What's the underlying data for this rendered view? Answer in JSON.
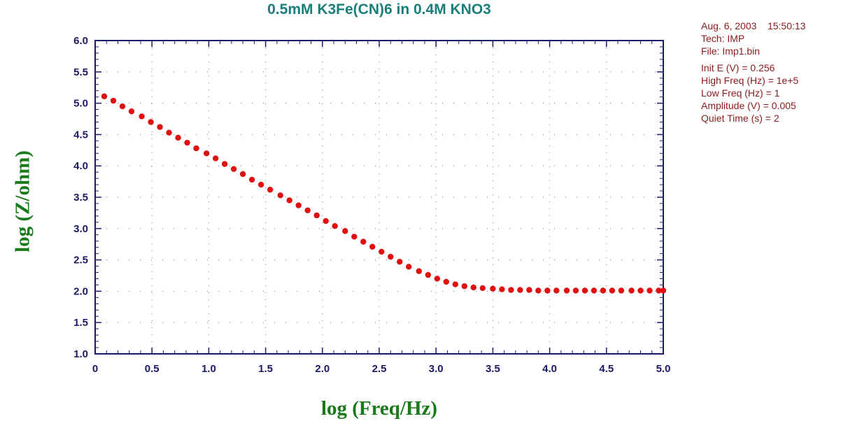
{
  "chart_data": {
    "type": "scatter",
    "title": "0.5mM K3Fe(CN)6 in 0.4M KNO3",
    "xlabel": "log (Freq/Hz)",
    "ylabel": "log (Z/ohm)",
    "xlim": [
      0,
      5
    ],
    "ylim": [
      1,
      6
    ],
    "xticks": [
      "0",
      "0.5",
      "1.0",
      "1.5",
      "2.0",
      "2.5",
      "3.0",
      "3.5",
      "4.0",
      "4.5",
      "5.0"
    ],
    "yticks": [
      "1.0",
      "1.5",
      "2.0",
      "2.5",
      "3.0",
      "3.5",
      "4.0",
      "4.5",
      "5.0",
      "5.5",
      "6.0"
    ],
    "grid": true,
    "series": [
      {
        "name": "log Z",
        "color": "#e01010",
        "x": [
          0.08,
          0.16,
          0.24,
          0.32,
          0.41,
          0.49,
          0.57,
          0.65,
          0.73,
          0.81,
          0.89,
          0.98,
          1.06,
          1.14,
          1.22,
          1.3,
          1.38,
          1.46,
          1.54,
          1.63,
          1.71,
          1.79,
          1.87,
          1.95,
          2.03,
          2.11,
          2.2,
          2.28,
          2.36,
          2.44,
          2.52,
          2.6,
          2.68,
          2.76,
          2.85,
          2.93,
          3.01,
          3.09,
          3.17,
          3.25,
          3.33,
          3.41,
          3.5,
          3.58,
          3.66,
          3.74,
          3.82,
          3.9,
          3.98,
          4.06,
          4.15,
          4.23,
          4.31,
          4.39,
          4.47,
          4.55,
          4.63,
          4.72,
          4.8,
          4.88,
          4.96,
          5.0
        ],
        "y": [
          5.11,
          5.04,
          4.95,
          4.87,
          4.79,
          4.7,
          4.62,
          4.53,
          4.45,
          4.37,
          4.28,
          4.2,
          4.12,
          4.03,
          3.95,
          3.87,
          3.78,
          3.7,
          3.62,
          3.53,
          3.45,
          3.37,
          3.29,
          3.21,
          3.12,
          3.04,
          2.96,
          2.87,
          2.79,
          2.71,
          2.63,
          2.55,
          2.47,
          2.39,
          2.32,
          2.26,
          2.2,
          2.15,
          2.11,
          2.08,
          2.06,
          2.05,
          2.04,
          2.03,
          2.02,
          2.02,
          2.02,
          2.01,
          2.01,
          2.01,
          2.01,
          2.01,
          2.01,
          2.01,
          2.01,
          2.01,
          2.01,
          2.01,
          2.01,
          2.01,
          2.01,
          2.01
        ]
      }
    ]
  },
  "info": {
    "date": "Aug. 6, 2003    15:50:13",
    "tech": "Tech: IMP",
    "file": "File: Imp1.bin",
    "init_e": "Init E (V) = 0.256",
    "high_freq": "High Freq (Hz) = 1e+5",
    "low_freq": "Low Freq (Hz) = 1",
    "amplitude": "Amplitude (V) = 0.005",
    "quiet_time": "Quiet Time (s) = 2"
  }
}
